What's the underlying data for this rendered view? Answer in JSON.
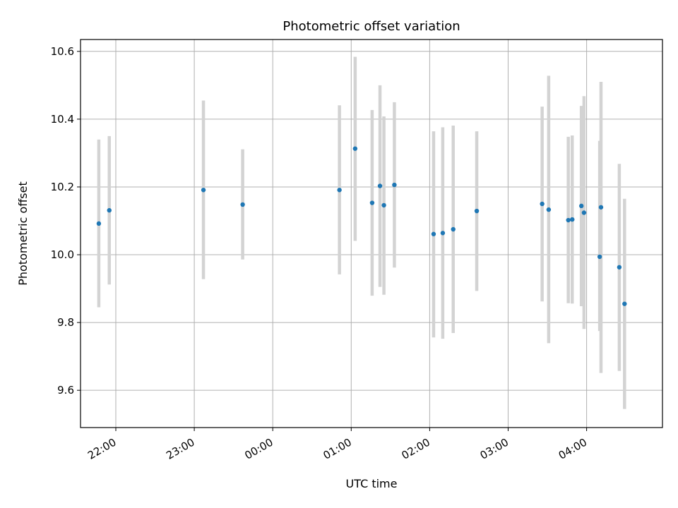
{
  "chart_data": {
    "type": "scatter",
    "title": "Photometric offset variation",
    "xlabel": "UTC time",
    "ylabel": "Photometric offset",
    "x_axis": "time",
    "xlim": [
      "21:33",
      "04:58"
    ],
    "ylim": [
      9.49,
      10.635
    ],
    "yticks": [
      9.6,
      9.8,
      10.0,
      10.2,
      10.4,
      10.6
    ],
    "ytick_labels": [
      "9.6",
      "9.8",
      "10.0",
      "10.2",
      "10.4",
      "10.6"
    ],
    "xticks": [
      "22:00",
      "23:00",
      "00:00",
      "01:00",
      "02:00",
      "03:00",
      "04:00"
    ],
    "xtick_labels": [
      "22:00",
      "23:00",
      "00:00",
      "01:00",
      "02:00",
      "03:00",
      "04:00"
    ],
    "grid": true,
    "colors": {
      "point": "#1f77b4",
      "errorbar": "#d3d3d3",
      "grid": "#b0b0b0"
    },
    "points": [
      {
        "x": "21:47",
        "y": 10.092,
        "low": 9.845,
        "high": 10.34
      },
      {
        "x": "21:55",
        "y": 10.131,
        "low": 9.912,
        "high": 10.35
      },
      {
        "x": "23:07",
        "y": 10.191,
        "low": 9.928,
        "high": 10.455
      },
      {
        "x": "23:37",
        "y": 10.148,
        "low": 9.986,
        "high": 10.311
      },
      {
        "x": "00:51",
        "y": 10.191,
        "low": 9.942,
        "high": 10.441
      },
      {
        "x": "01:03",
        "y": 10.313,
        "low": 10.041,
        "high": 10.584
      },
      {
        "x": "01:16",
        "y": 10.153,
        "low": 9.879,
        "high": 10.427
      },
      {
        "x": "01:22",
        "y": 10.203,
        "low": 9.905,
        "high": 10.5
      },
      {
        "x": "01:25",
        "y": 10.146,
        "low": 9.882,
        "high": 10.408
      },
      {
        "x": "01:33",
        "y": 10.206,
        "low": 9.962,
        "high": 10.45
      },
      {
        "x": "02:03",
        "y": 10.061,
        "low": 9.756,
        "high": 10.364
      },
      {
        "x": "02:10",
        "y": 10.064,
        "low": 9.752,
        "high": 10.376
      },
      {
        "x": "02:18",
        "y": 10.075,
        "low": 9.769,
        "high": 10.381
      },
      {
        "x": "02:36",
        "y": 10.129,
        "low": 9.893,
        "high": 10.364
      },
      {
        "x": "03:26",
        "y": 10.15,
        "low": 9.862,
        "high": 10.437
      },
      {
        "x": "03:31",
        "y": 10.133,
        "low": 9.739,
        "high": 10.528
      },
      {
        "x": "03:46",
        "y": 10.102,
        "low": 9.857,
        "high": 10.348
      },
      {
        "x": "03:49",
        "y": 10.104,
        "low": 9.856,
        "high": 10.352
      },
      {
        "x": "03:56",
        "y": 10.144,
        "low": 9.848,
        "high": 10.439
      },
      {
        "x": "03:58",
        "y": 10.124,
        "low": 9.781,
        "high": 10.468
      },
      {
        "x": "04:10",
        "y": 9.994,
        "low": 9.775,
        "high": 10.336
      },
      {
        "x": "04:11",
        "y": 10.14,
        "low": 9.651,
        "high": 10.51
      },
      {
        "x": "04:25",
        "y": 9.963,
        "low": 9.657,
        "high": 10.268
      },
      {
        "x": "04:29",
        "y": 9.855,
        "low": 9.545,
        "high": 10.165
      }
    ]
  }
}
